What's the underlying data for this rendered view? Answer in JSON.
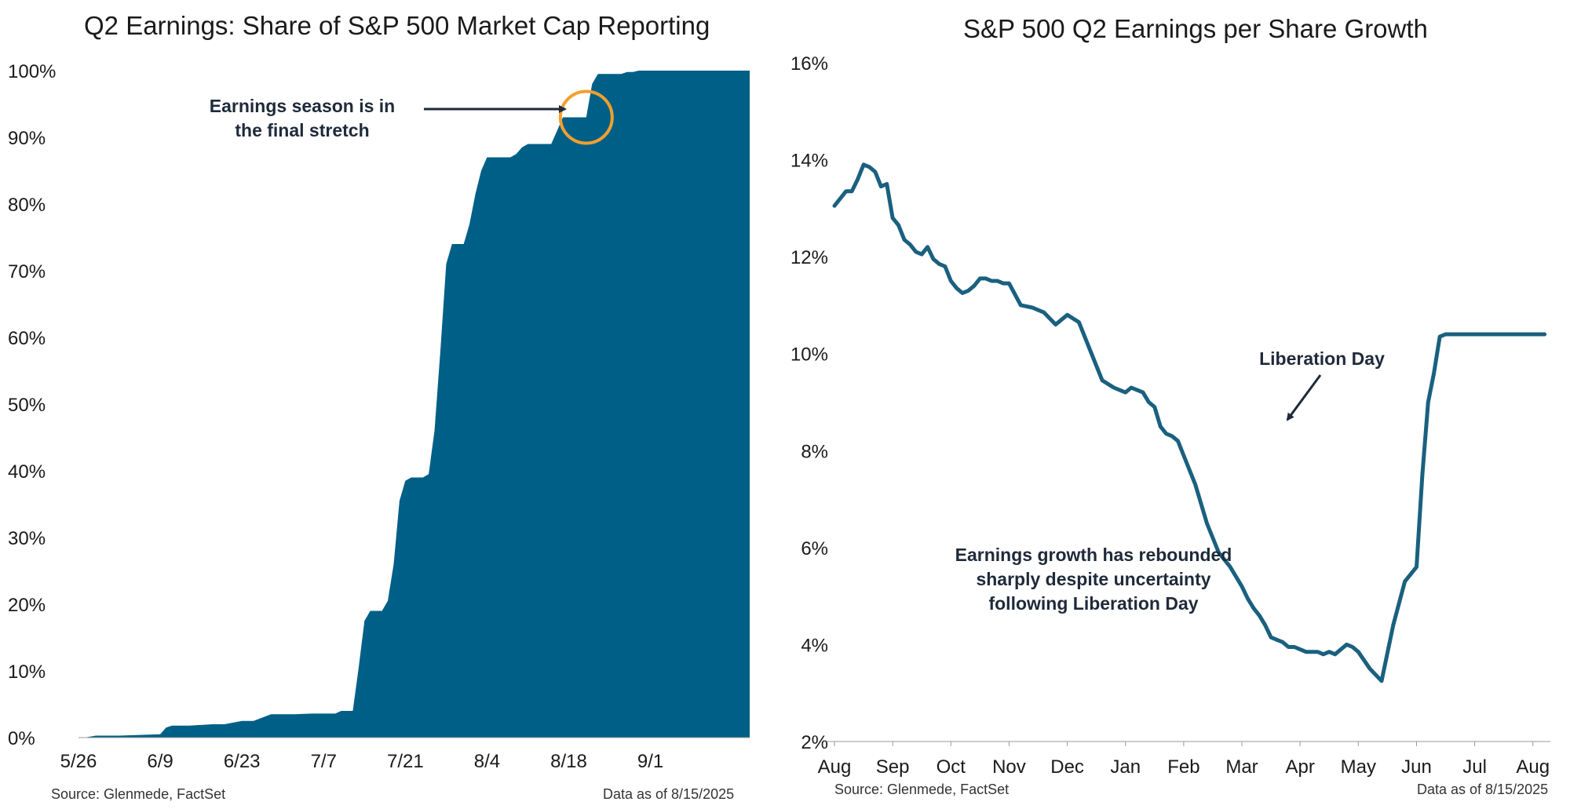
{
  "chart_data": [
    {
      "type": "area",
      "title": "Q2 Earnings: Share of S&P 500 Market Cap Reporting",
      "xlabel": "",
      "ylabel": "",
      "x_tick_labels": [
        "5/26",
        "6/9",
        "6/23",
        "7/7",
        "7/21",
        "8/4",
        "8/18",
        "9/1"
      ],
      "y_tick_labels": [
        "0%",
        "10%",
        "20%",
        "30%",
        "40%",
        "50%",
        "60%",
        "70%",
        "80%",
        "90%",
        "100%"
      ],
      "ylim": [
        0,
        100
      ],
      "x_days_domain": [
        0,
        115
      ],
      "series": [
        {
          "x_days": [
            0,
            1,
            3,
            7,
            14,
            15,
            16,
            19,
            23,
            25,
            28,
            29,
            30,
            33,
            37,
            40,
            42,
            44,
            45,
            46,
            46.5,
            47,
            48,
            49,
            50,
            51,
            52,
            53,
            54,
            55,
            56,
            57,
            58,
            59,
            60,
            61,
            62,
            63,
            64,
            65,
            66,
            67,
            68,
            69,
            70,
            71,
            72,
            73,
            74,
            75,
            76,
            77,
            78,
            79,
            80,
            81,
            82,
            83,
            84,
            85,
            86,
            87,
            88,
            89,
            90,
            91,
            92,
            93,
            94,
            95,
            96,
            97,
            98,
            99,
            100,
            101,
            102,
            103,
            104,
            105,
            106,
            107,
            108,
            109,
            110,
            111,
            112,
            113,
            114,
            115
          ],
          "values": [
            0,
            0,
            0.3,
            0.3,
            0.5,
            1.5,
            1.8,
            1.8,
            2.0,
            2.0,
            2.5,
            2.5,
            2.5,
            3.5,
            3.5,
            3.6,
            3.6,
            3.6,
            4.0,
            4.0,
            4.0,
            4.0,
            10.5,
            17.5,
            19.0,
            19.0,
            19.0,
            20.5,
            26.0,
            35.5,
            38.5,
            39.0,
            39.0,
            39.0,
            39.5,
            46.0,
            58.0,
            71.0,
            74.0,
            74.0,
            74.0,
            77.0,
            81.5,
            85.0,
            87.0,
            87.0,
            87.0,
            87.0,
            87.0,
            87.5,
            88.5,
            89.0,
            89.0,
            89.0,
            89.0,
            89.0,
            91.0,
            93.0,
            93.0,
            93.0,
            93.0,
            93.0,
            98.0,
            99.5,
            99.5,
            99.5,
            99.5,
            99.5,
            99.8,
            99.8,
            100,
            100,
            100,
            100,
            100,
            100,
            100,
            100,
            100,
            100,
            100,
            100,
            100,
            100,
            100,
            100,
            100,
            100,
            100,
            100
          ]
        }
      ],
      "color": "#005f87",
      "highlight_circle": {
        "x_days": 87,
        "value": 93,
        "color": "#f0a030"
      },
      "annotation": "Earnings season is in the final stretch",
      "source": "Source: Glenmede, FactSet",
      "as_of": "Data as of 8/15/2025"
    },
    {
      "type": "line",
      "title": "S&P 500 Q2 Earnings per Share Growth",
      "xlabel": "",
      "ylabel": "",
      "x_tick_labels": [
        "Aug",
        "Sep",
        "Oct",
        "Nov",
        "Dec",
        "Jan",
        "Feb",
        "Mar",
        "Apr",
        "May",
        "Jun",
        "Jul",
        "Aug"
      ],
      "y_tick_labels": [
        "2%",
        "4%",
        "6%",
        "8%",
        "10%",
        "12%",
        "14%",
        "16%"
      ],
      "ylim": [
        2,
        16
      ],
      "x_months_domain": [
        0,
        12.3
      ],
      "series": [
        {
          "x_months": [
            0,
            0.1,
            0.2,
            0.3,
            0.4,
            0.5,
            0.6,
            0.7,
            0.8,
            0.9,
            1.0,
            1.1,
            1.2,
            1.3,
            1.4,
            1.5,
            1.6,
            1.7,
            1.8,
            1.9,
            2.0,
            2.1,
            2.2,
            2.3,
            2.4,
            2.5,
            2.6,
            2.7,
            2.8,
            2.9,
            3.0,
            3.2,
            3.4,
            3.6,
            3.8,
            4.0,
            4.2,
            4.4,
            4.6,
            4.8,
            5.0,
            5.1,
            5.2,
            5.3,
            5.4,
            5.5,
            5.6,
            5.7,
            5.8,
            5.9,
            6.0,
            6.2,
            6.4,
            6.6,
            6.8,
            7.0,
            7.1,
            7.2,
            7.3,
            7.4,
            7.5,
            7.6,
            7.7,
            7.8,
            7.9,
            8.0,
            8.1,
            8.2,
            8.3,
            8.4,
            8.5,
            8.6,
            8.7,
            8.8,
            8.9,
            9.0,
            9.2,
            9.4,
            9.6,
            9.8,
            10.0,
            10.1,
            10.2,
            10.3,
            10.4,
            10.5,
            10.6,
            10.7,
            10.8,
            10.9,
            11.0,
            11.1,
            11.2,
            11.3,
            11.4,
            11.5,
            11.6,
            11.7,
            11.8,
            11.9,
            12.0,
            12.1,
            12.2
          ],
          "values": [
            13.05,
            13.2,
            13.35,
            13.35,
            13.6,
            13.9,
            13.85,
            13.75,
            13.45,
            13.5,
            12.8,
            12.65,
            12.35,
            12.25,
            12.1,
            12.05,
            12.2,
            11.95,
            11.85,
            11.8,
            11.5,
            11.35,
            11.25,
            11.3,
            11.4,
            11.55,
            11.55,
            11.5,
            11.5,
            11.45,
            11.45,
            11.0,
            10.95,
            10.85,
            10.6,
            10.8,
            10.65,
            10.05,
            9.45,
            9.3,
            9.2,
            9.3,
            9.25,
            9.2,
            9.0,
            8.9,
            8.5,
            8.35,
            8.3,
            8.2,
            7.9,
            7.3,
            6.5,
            5.9,
            5.6,
            5.2,
            4.95,
            4.75,
            4.6,
            4.4,
            4.15,
            4.1,
            4.05,
            3.95,
            3.95,
            3.9,
            3.85,
            3.85,
            3.85,
            3.8,
            3.85,
            3.8,
            3.9,
            4.0,
            3.95,
            3.85,
            3.5,
            3.25,
            4.4,
            5.3,
            5.6,
            7.5,
            9.0,
            9.6,
            10.35,
            10.4,
            10.4,
            10.4,
            10.4,
            10.4,
            10.4,
            10.4,
            10.4,
            10.4,
            10.4,
            10.4,
            10.4,
            10.4,
            10.4,
            10.4,
            10.4,
            10.4,
            10.4
          ],
          "color": "#1a607f"
        }
      ],
      "annotations": [
        "Liberation Day",
        "Earnings growth has rebounded sharply despite uncertainty following Liberation Day"
      ],
      "source": "Source: Glenmede, FactSet",
      "as_of": "Data as of 8/15/2025"
    }
  ]
}
